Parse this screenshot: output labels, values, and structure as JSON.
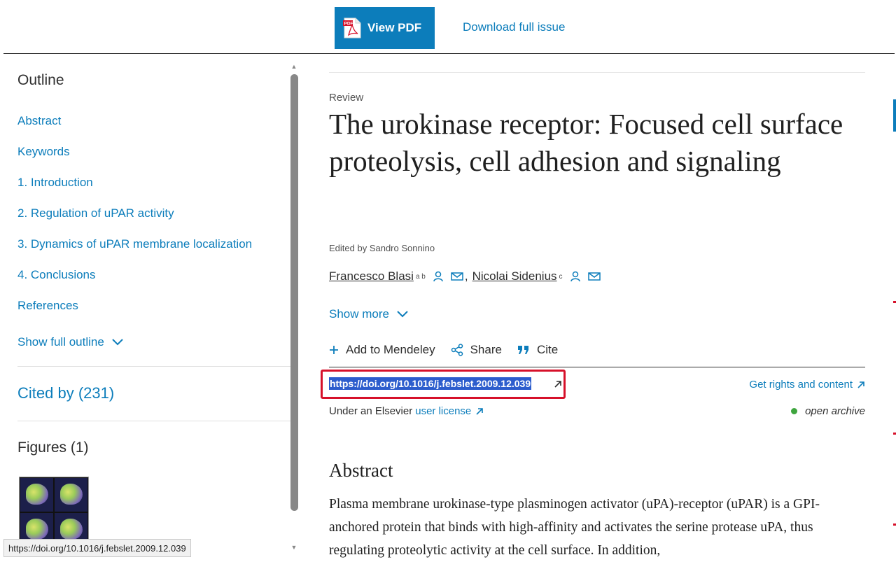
{
  "toolbar": {
    "view_pdf_label": "View PDF",
    "pdf_badge": "PDF",
    "download_label": "Download full issue"
  },
  "outline": {
    "title": "Outline",
    "items": [
      {
        "label": "Abstract"
      },
      {
        "label": "Keywords"
      },
      {
        "label": "1. Introduction"
      },
      {
        "label": "2. Regulation of uPAR activity"
      },
      {
        "label": "3. Dynamics of uPAR membrane localization"
      },
      {
        "label": "4. Conclusions"
      },
      {
        "label": "References"
      }
    ],
    "show_full_label": "Show full outline",
    "cited_by": "Cited by (231)",
    "figures_label": "Figures (1)"
  },
  "article": {
    "type": "Review",
    "title": "The urokinase receptor: Focused cell surface proteolysis, cell adhesion and signaling",
    "edited_by": "Edited by Sandro Sonnino",
    "authors": [
      {
        "name": "Francesco Blasi",
        "sup": "a b"
      },
      {
        "name": "Nicolai Sidenius",
        "sup": "c"
      }
    ],
    "author_separator": ",",
    "show_more": "Show more",
    "actions": {
      "mendeley": "Add to Mendeley",
      "share": "Share",
      "cite": "Cite"
    },
    "doi": "https://doi.org/10.1016/j.febslet.2009.12.039",
    "rights_label": "Get rights and content",
    "license_prefix": "Under an Elsevier",
    "license_link": "user license",
    "open_archive": "open archive",
    "abstract_title": "Abstract",
    "abstract_text": "Plasma membrane urokinase-type plasminogen activator (uPA)-receptor (uPAR) is a GPI-anchored protein that binds with high-affinity and activates the serine protease uPA, thus regulating proteolytic activity at the cell surface. In addition,"
  },
  "status_bar": {
    "url": "https://doi.org/10.1016/j.febslet.2009.12.039"
  },
  "colors": {
    "link": "#0c7dbb",
    "doi_highlight": "#2c5dcd",
    "focus_box": "#d6112a",
    "open_archive_dot": "#3ea53e"
  }
}
